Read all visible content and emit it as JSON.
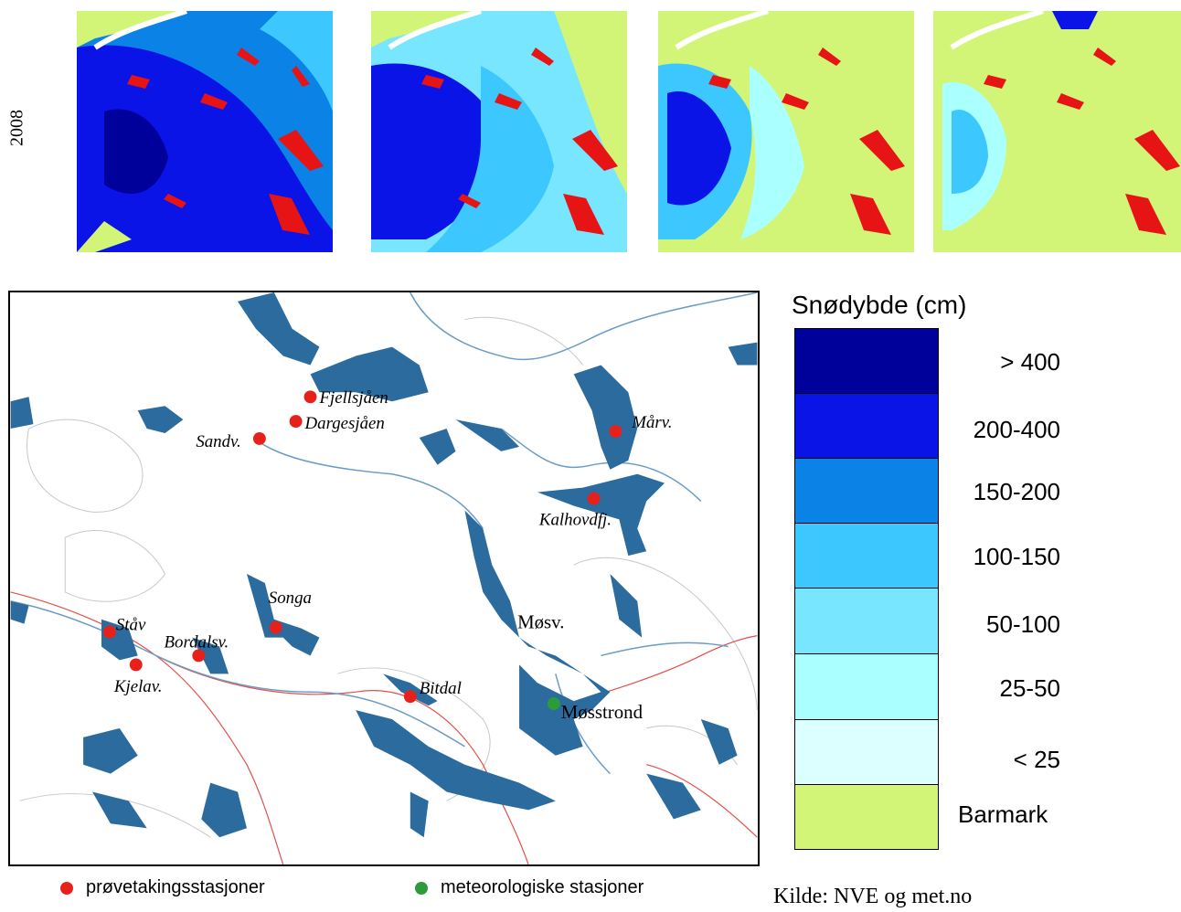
{
  "year_label": "2008",
  "map": {
    "stations": [
      {
        "id": "fjellsjaen",
        "name": "Fjellsjåen",
        "type": "sample"
      },
      {
        "id": "dargesjaen",
        "name": "Dargesjåen",
        "type": "sample"
      },
      {
        "id": "sandv",
        "name": "Sandv.",
        "type": "sample"
      },
      {
        "id": "marv",
        "name": "Mårv.",
        "type": "sample"
      },
      {
        "id": "kalhovdfj",
        "name": "Kalhovdfj.",
        "type": "sample"
      },
      {
        "id": "songa",
        "name": "Songa",
        "type": "sample"
      },
      {
        "id": "stav",
        "name": "Ståv",
        "type": "sample"
      },
      {
        "id": "bordalsv",
        "name": "Bordalsv.",
        "type": "sample"
      },
      {
        "id": "kjelav",
        "name": "Kjelav.",
        "type": "sample"
      },
      {
        "id": "bitdal",
        "name": "Bitdal",
        "type": "sample"
      },
      {
        "id": "mosstrond",
        "name": "Møsstrond",
        "type": "met"
      }
    ],
    "lake_label": "Møsv."
  },
  "legend": {
    "title": "Snødybde (cm)",
    "classes": [
      {
        "label": "> 400",
        "color": "#00009a"
      },
      {
        "label": "200-400",
        "color": "#0a14e6"
      },
      {
        "label": "150-200",
        "color": "#0a82e6"
      },
      {
        "label": "100-150",
        "color": "#3cc8ff"
      },
      {
        "label": "50-100",
        "color": "#78e6ff"
      },
      {
        "label": "25-50",
        "color": "#aaffff"
      },
      {
        "label": "< 25",
        "color": "#dcffff"
      },
      {
        "label": "Barmark",
        "color": "#d2f578"
      }
    ]
  },
  "footer": {
    "sample_label": "prøvetakingsstasjoner",
    "met_label": "meteorologiske stasjoner",
    "sample_color": "#e8201c",
    "met_color": "#2e9b3a"
  },
  "source": "Kilde: NVE og met.no",
  "colors": {
    "lake": "#2b6b9e",
    "river": "#6a9cc6",
    "road": "#e2504c",
    "contour": "#c8c8c8",
    "glacier_white": "#ffffff",
    "lake_red": "#e61414"
  }
}
